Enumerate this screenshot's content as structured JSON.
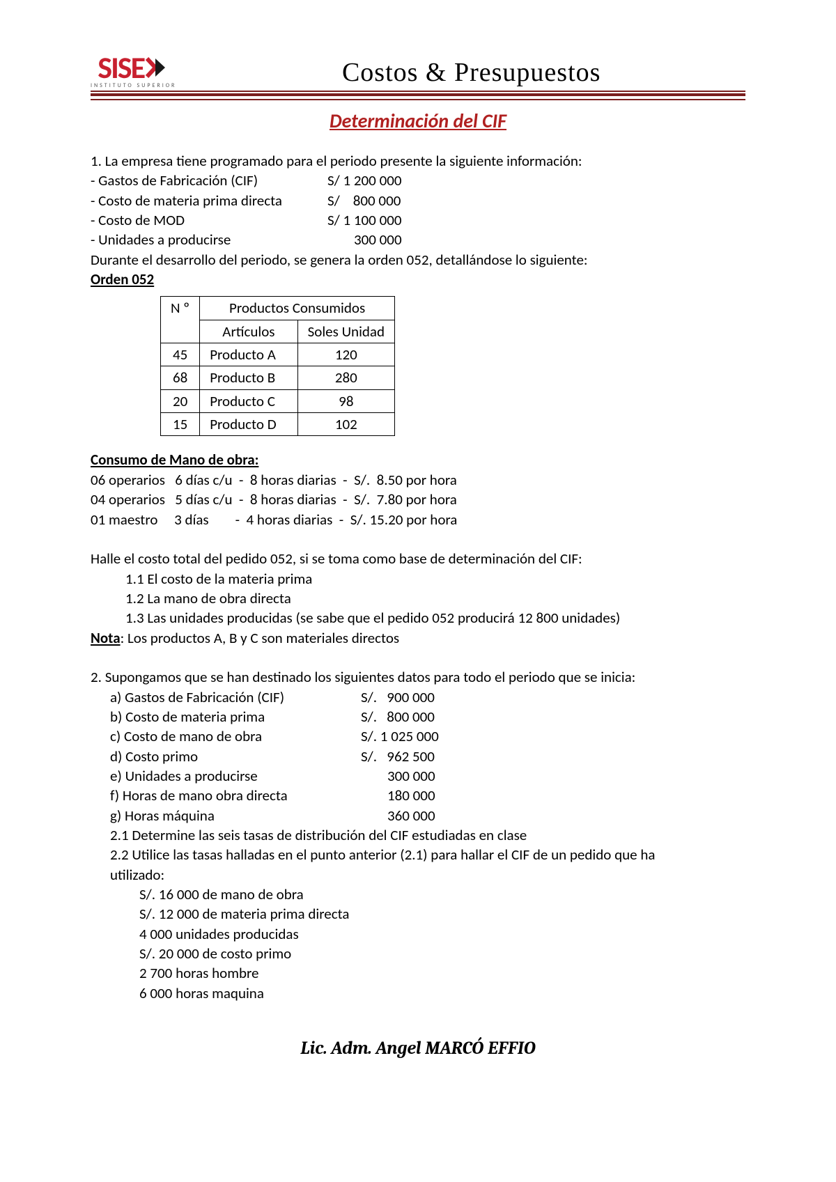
{
  "header": {
    "logo_text": "SISE",
    "logo_sub": "INSTITUTO SUPERIOR",
    "course_title": "Costos & Presupuestos"
  },
  "doc_title": "Determinación del CIF",
  "p1_intro": "1. La empresa tiene programado para el periodo presente la siguiente información:",
  "p1_items": [
    {
      "label": "- Gastos de Fabricación (CIF)",
      "value": "S/ 1 200 000"
    },
    {
      "label": "- Costo de materia prima directa",
      "value": "S/    800 000"
    },
    {
      "label": "- Costo de MOD",
      "value": "S/ 1 100 000"
    },
    {
      "label": "- Unidades a producirse",
      "value": "        300 000"
    }
  ],
  "p1_mid": "Durante el desarrollo del periodo, se genera la orden 052, detallándose lo siguiente:",
  "order_label": "Orden 052",
  "table": {
    "head_n": "N º",
    "head_group": "Productos Consumidos",
    "head_art": "Artículos",
    "head_soles": "Soles Unidad",
    "rows": [
      {
        "n": "45",
        "art": "Producto A",
        "price": "120"
      },
      {
        "n": "68",
        "art": "Producto B",
        "price": "280"
      },
      {
        "n": "20",
        "art": "Producto C",
        "price": "98"
      },
      {
        "n": "15",
        "art": "Producto D",
        "price": "102"
      }
    ]
  },
  "labor_title": "Consumo de Mano de obra:",
  "labor_lines": [
    "06 operarios   6 días c/u  -  8 horas diarias  -  S/.  8.50 por hora",
    "04 operarios   5 días c/u  -  8 horas diarias  -  S/.  7.80 por hora",
    "01 maestro     3 días        -  4 horas diarias  -  S/. 15.20 por hora"
  ],
  "halle": "Halle el costo total del pedido 052, si se toma como base de determinación del CIF:",
  "halle_items": [
    "1.1 El costo de la materia prima",
    "1.2 La mano de obra directa",
    "1.3 Las unidades producidas (se sabe que el pedido 052 producirá 12 800 unidades)"
  ],
  "nota_label": "Nota",
  "nota_text": ": Los productos A, B y C son materiales directos",
  "p2_intro": "2. Supongamos que se han destinado los siguientes datos para todo el periodo que se inicia:",
  "p2_items": [
    {
      "label": "a)  Gastos de Fabricación (CIF)",
      "value": "S/.   900 000"
    },
    {
      "label": "b)  Costo de materia prima",
      "value": "S/.   800 000"
    },
    {
      "label": "c)  Costo de mano de obra",
      "value": "S/. 1 025 000"
    },
    {
      "label": "d)  Costo primo",
      "value": "S/.   962 500"
    },
    {
      "label": "e)  Unidades a producirse",
      "value": "        300 000"
    },
    {
      "label": "f)  Horas de mano obra directa",
      "value": "        180 000"
    },
    {
      "label": "g)  Horas máquina",
      "value": "        360 000"
    }
  ],
  "p2_sub": [
    "2.1 Determine las seis tasas de distribución del CIF estudiadas en clase",
    "2.2 Utilice las tasas halladas en el punto anterior (2.1) para hallar el CIF de un pedido que ha utilizado:"
  ],
  "p2_use": [
    "S/.  16 000 de mano de obra",
    "S/.  12 000 de materia prima directa",
    "4 000 unidades producidas",
    "S/. 20 000 de costo primo",
    "2 700 horas hombre",
    "6 000 horas maquina"
  ],
  "footer": "Lic. Adm. Angel MARCÓ EFFIO",
  "colors": {
    "brand_red": "#c8202f",
    "rule_red": "#7a1e1e",
    "title_red": "#b02020"
  }
}
